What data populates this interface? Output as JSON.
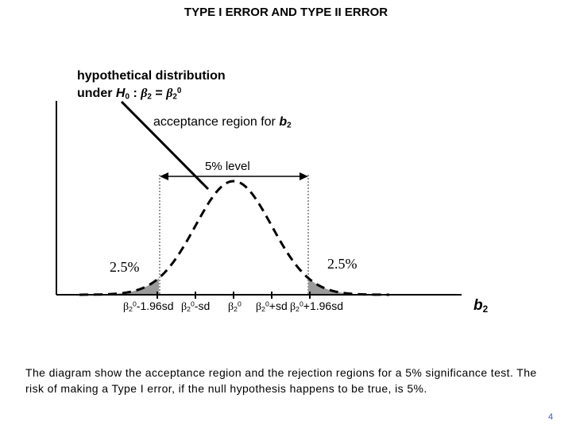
{
  "title": "TYPE I ERROR AND TYPE II ERROR",
  "labels": {
    "hyp_line1": "hypothetical distribution",
    "hyp_under": "under",
    "hyp_H": "H",
    "hyp_H_sub": "0",
    "hyp_colon": ":",
    "hyp_beta_lhs": "β",
    "hyp_beta_lhs_sub": "2",
    "hyp_equals": "=",
    "hyp_beta_rhs": "β",
    "hyp_beta_rhs_sub": "2",
    "hyp_beta_rhs_sup": "0",
    "accept_text": "acceptance region for",
    "accept_b": "b",
    "accept_b_sub": "2",
    "level": "5% level",
    "left_tail": "2.5%",
    "right_tail": "2.5%",
    "axis_b": "b",
    "axis_b_sub": "2"
  },
  "ticks": [
    {
      "beta": "β",
      "sub": "2",
      "sup": "0",
      "suffix": "-1.96sd"
    },
    {
      "beta": "β",
      "sub": "2",
      "sup": "0",
      "suffix": "-sd"
    },
    {
      "beta": "β",
      "sub": "2",
      "sup": "0",
      "suffix": ""
    },
    {
      "beta": "β",
      "sub": "2",
      "sup": "0",
      "suffix": "+sd"
    },
    {
      "beta": "β",
      "sub": "2",
      "sup": "0",
      "suffix": "+1.96sd"
    }
  ],
  "caption": "The diagram show the acceptance region and the rejection regions for a 5% significance test.  The risk of making a Type I error, if the null hypothesis happens to be true, is 5%.",
  "page_number": "4",
  "colors": {
    "tail_fill": "#9a9a9a",
    "guide": "#999999",
    "page_number": "#3355dd"
  }
}
